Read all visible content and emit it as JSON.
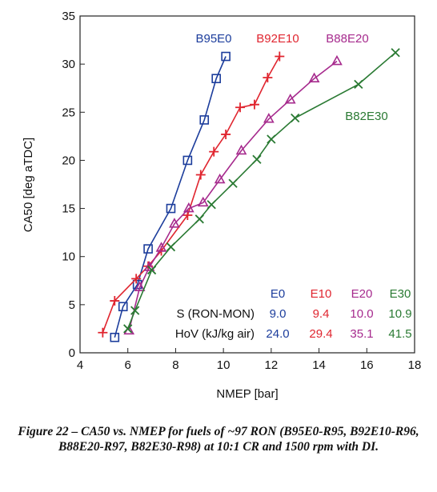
{
  "caption": "Figure 22 – CA50 vs. NMEP for fuels of ~97 RON (B95E0-R95, B92E10-R96, B88E20-R97, B82E30-R98) at 10:1 CR and 1500 rpm with DI.",
  "chart_data": {
    "type": "line",
    "xlabel": "NMEP [bar]",
    "ylabel": "CA50 [deg aTDC]",
    "xlim": [
      4,
      18
    ],
    "ylim": [
      0,
      35
    ],
    "xticks": [
      "4",
      "6",
      "8",
      "10",
      "12",
      "14",
      "16",
      "18"
    ],
    "yticks": [
      "0",
      "5",
      "10",
      "15",
      "20",
      "25",
      "30",
      "35"
    ],
    "grid": false,
    "series": [
      {
        "name": "B95E0",
        "color": "#1c3d9c",
        "marker": "square",
        "x": [
          5.45,
          5.8,
          6.4,
          6.85,
          7.8,
          8.5,
          9.2,
          9.7,
          10.1
        ],
        "y": [
          1.6,
          4.8,
          7.1,
          10.8,
          15.0,
          20.0,
          24.2,
          28.5,
          30.8
        ]
      },
      {
        "name": "B92E10",
        "color": "#e0252f",
        "marker": "plus",
        "x": [
          4.95,
          5.45,
          6.35,
          6.85,
          7.4,
          8.5,
          9.05,
          9.6,
          10.1,
          10.7,
          11.3,
          11.85,
          12.35
        ],
        "y": [
          2.1,
          5.4,
          7.7,
          9.0,
          10.6,
          14.3,
          18.5,
          20.9,
          22.7,
          25.5,
          25.8,
          28.6,
          30.8
        ]
      },
      {
        "name": "B88E20",
        "color": "#a62a8d",
        "marker": "triangle",
        "x": [
          6.05,
          6.5,
          6.9,
          7.4,
          7.95,
          8.55,
          9.15,
          9.85,
          10.75,
          11.9,
          12.8,
          13.8,
          14.75
        ],
        "y": [
          2.3,
          6.8,
          8.9,
          10.9,
          13.4,
          15.0,
          15.6,
          18.0,
          21.0,
          24.3,
          26.3,
          28.5,
          30.3
        ]
      },
      {
        "name": "B82E30",
        "color": "#2a7a33",
        "marker": "x",
        "x": [
          6.0,
          6.3,
          7.0,
          7.8,
          9.0,
          9.5,
          10.4,
          11.4,
          12.0,
          13.0,
          15.65,
          17.2
        ],
        "y": [
          2.5,
          4.4,
          8.6,
          11.0,
          13.9,
          15.4,
          17.6,
          20.1,
          22.2,
          24.4,
          27.9,
          31.2
        ]
      }
    ],
    "annotation_table": {
      "columns": [
        "E0",
        "E10",
        "E20",
        "E30"
      ],
      "column_colors": [
        "#1c3d9c",
        "#e0252f",
        "#a62a8d",
        "#2a7a33"
      ],
      "rows": [
        {
          "label": "S (RON-MON)",
          "values": [
            "9.0",
            "9.4",
            "10.0",
            "10.9"
          ]
        },
        {
          "label": "HoV (kJ/kg air)",
          "values": [
            "24.0",
            "29.4",
            "35.1",
            "41.5"
          ]
        }
      ]
    }
  }
}
